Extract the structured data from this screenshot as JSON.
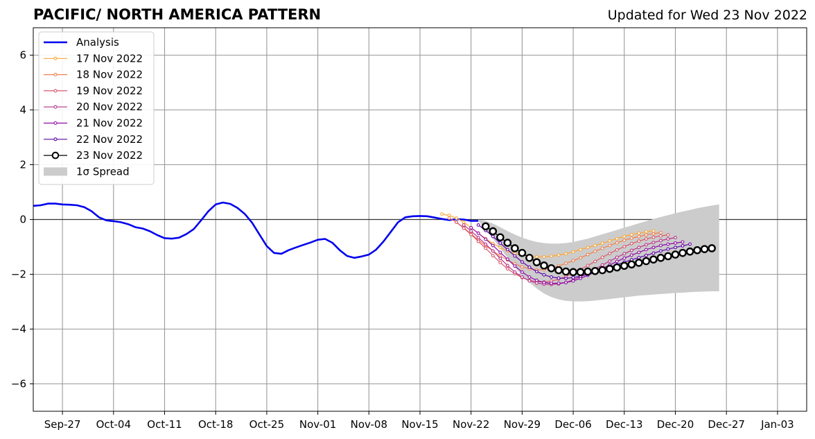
{
  "header": {
    "title": "PACIFIC/ NORTH AMERICA PATTERN",
    "updated": "Updated for Wed 23 Nov 2022"
  },
  "chart_data": {
    "type": "line",
    "title": "PACIFIC/ NORTH AMERICA PATTERN",
    "subtitle": "Updated for Wed 23 Nov 2022",
    "xlabel": "",
    "ylabel": "",
    "x_axis": {
      "start": "2022-09-23",
      "end": "2023-01-07",
      "ticks": [
        {
          "date": "2022-09-27",
          "label": "Sep-27"
        },
        {
          "date": "2022-10-04",
          "label": "Oct-04"
        },
        {
          "date": "2022-10-11",
          "label": "Oct-11"
        },
        {
          "date": "2022-10-18",
          "label": "Oct-18"
        },
        {
          "date": "2022-10-25",
          "label": "Oct-25"
        },
        {
          "date": "2022-11-01",
          "label": "Nov-01"
        },
        {
          "date": "2022-11-08",
          "label": "Nov-08"
        },
        {
          "date": "2022-11-15",
          "label": "Nov-15"
        },
        {
          "date": "2022-11-22",
          "label": "Nov-22"
        },
        {
          "date": "2022-11-29",
          "label": "Nov-29"
        },
        {
          "date": "2022-12-06",
          "label": "Dec-06"
        },
        {
          "date": "2022-12-13",
          "label": "Dec-13"
        },
        {
          "date": "2022-12-20",
          "label": "Dec-20"
        },
        {
          "date": "2022-12-27",
          "label": "Dec-27"
        },
        {
          "date": "2023-01-03",
          "label": "Jan-03"
        }
      ]
    },
    "ylim": [
      -7,
      7
    ],
    "yticks": [
      {
        "value": 6,
        "label": "6"
      },
      {
        "value": 4,
        "label": "4"
      },
      {
        "value": 2,
        "label": "2"
      },
      {
        "value": 0,
        "label": "0"
      },
      {
        "value": -2,
        "label": "−2"
      },
      {
        "value": -4,
        "label": "−4"
      },
      {
        "value": -6,
        "label": "−6"
      }
    ],
    "grid": true,
    "zero_line": true,
    "legend": {
      "placement": "top-left",
      "items": [
        {
          "label": "Analysis",
          "kind": "line",
          "color": "#0000ee"
        },
        {
          "label": "17 Nov 2022",
          "kind": "dotline",
          "color": "#fca636"
        },
        {
          "label": "18 Nov 2022",
          "kind": "dotline",
          "color": "#f07f4f"
        },
        {
          "label": "19 Nov 2022",
          "kind": "dotline",
          "color": "#d8576b"
        },
        {
          "label": "20 Nov 2022",
          "kind": "dotline",
          "color": "#b83289"
        },
        {
          "label": "21 Nov 2022",
          "kind": "dotline",
          "color": "#8b0aa5"
        },
        {
          "label": "22 Nov 2022",
          "kind": "dotline",
          "color": "#5c01a6"
        },
        {
          "label": "23 Nov 2022",
          "kind": "bigdot",
          "color": "#000000"
        },
        {
          "label": "1σ Spread",
          "kind": "patch",
          "color": "#cccccc"
        }
      ]
    },
    "analysis": {
      "name": "Analysis",
      "color": "#0000ee",
      "x": [
        "2022-09-23",
        "2022-09-24",
        "2022-09-25",
        "2022-09-26",
        "2022-09-27",
        "2022-09-28",
        "2022-09-29",
        "2022-09-30",
        "2022-10-01",
        "2022-10-02",
        "2022-10-03",
        "2022-10-04",
        "2022-10-05",
        "2022-10-06",
        "2022-10-07",
        "2022-10-08",
        "2022-10-09",
        "2022-10-10",
        "2022-10-11",
        "2022-10-12",
        "2022-10-13",
        "2022-10-14",
        "2022-10-15",
        "2022-10-16",
        "2022-10-17",
        "2022-10-18",
        "2022-10-19",
        "2022-10-20",
        "2022-10-21",
        "2022-10-22",
        "2022-10-23",
        "2022-10-24",
        "2022-10-25",
        "2022-10-26",
        "2022-10-27",
        "2022-10-28",
        "2022-10-29",
        "2022-10-30",
        "2022-10-31",
        "2022-11-01",
        "2022-11-02",
        "2022-11-03",
        "2022-11-04",
        "2022-11-05",
        "2022-11-06",
        "2022-11-07",
        "2022-11-08",
        "2022-11-09",
        "2022-11-10",
        "2022-11-11",
        "2022-11-12",
        "2022-11-13",
        "2022-11-14",
        "2022-11-15",
        "2022-11-16",
        "2022-11-17",
        "2022-11-18",
        "2022-11-19",
        "2022-11-20",
        "2022-11-21",
        "2022-11-22",
        "2022-11-23"
      ],
      "y": [
        0.5,
        0.52,
        0.58,
        0.58,
        0.55,
        0.54,
        0.52,
        0.45,
        0.3,
        0.08,
        -0.03,
        -0.06,
        -0.1,
        -0.17,
        -0.28,
        -0.33,
        -0.43,
        -0.57,
        -0.68,
        -0.7,
        -0.66,
        -0.53,
        -0.35,
        -0.03,
        0.3,
        0.55,
        0.62,
        0.57,
        0.42,
        0.2,
        -0.12,
        -0.55,
        -0.97,
        -1.22,
        -1.25,
        -1.12,
        -1.02,
        -0.93,
        -0.84,
        -0.74,
        -0.71,
        -0.85,
        -1.12,
        -1.33,
        -1.4,
        -1.35,
        -1.28,
        -1.1,
        -0.8,
        -0.45,
        -0.1,
        0.08,
        0.12,
        0.13,
        0.12,
        0.07,
        0.02,
        -0.02,
        0.01,
        0.0,
        -0.05,
        -0.05
      ]
    },
    "forecasts": [
      {
        "name": "17 Nov 2022",
        "color": "#fca636",
        "start": "2022-11-18",
        "values": [
          0.2,
          0.15,
          0.05,
          -0.1,
          -0.3,
          -0.5,
          -0.7,
          -0.88,
          -1.02,
          -1.15,
          -1.24,
          -1.3,
          -1.34,
          -1.36,
          -1.36,
          -1.34,
          -1.3,
          -1.25,
          -1.18,
          -1.1,
          -1.02,
          -0.95,
          -0.87,
          -0.78,
          -0.7,
          -0.62,
          -0.55,
          -0.5,
          -0.45,
          -0.42
        ]
      },
      {
        "name": "18 Nov 2022",
        "color": "#f07f4f",
        "start": "2022-11-19",
        "values": [
          0.05,
          -0.1,
          -0.3,
          -0.52,
          -0.75,
          -0.95,
          -1.15,
          -1.33,
          -1.48,
          -1.62,
          -1.73,
          -1.8,
          -1.84,
          -1.83,
          -1.78,
          -1.7,
          -1.6,
          -1.5,
          -1.4,
          -1.28,
          -1.16,
          -1.05,
          -0.95,
          -0.85,
          -0.76,
          -0.68,
          -0.62,
          -0.56,
          -0.52,
          -0.48
        ]
      },
      {
        "name": "19 Nov 2022",
        "color": "#d8576b",
        "start": "2022-11-20",
        "values": [
          -0.1,
          -0.32,
          -0.55,
          -0.8,
          -1.05,
          -1.32,
          -1.57,
          -1.8,
          -1.98,
          -2.12,
          -2.22,
          -2.27,
          -2.28,
          -2.25,
          -2.18,
          -2.08,
          -1.95,
          -1.82,
          -1.68,
          -1.53,
          -1.38,
          -1.24,
          -1.11,
          -0.99,
          -0.88,
          -0.79,
          -0.71,
          -0.65,
          -0.6,
          -0.56
        ]
      },
      {
        "name": "20 Nov 2022",
        "color": "#b83289",
        "start": "2022-11-21",
        "values": [
          -0.2,
          -0.42,
          -0.66,
          -0.9,
          -1.15,
          -1.42,
          -1.68,
          -1.92,
          -2.1,
          -2.24,
          -2.32,
          -2.36,
          -2.37,
          -2.35,
          -2.3,
          -2.2,
          -2.08,
          -1.94,
          -1.8,
          -1.66,
          -1.52,
          -1.38,
          -1.25,
          -1.13,
          -1.02,
          -0.92,
          -0.84,
          -0.77,
          -0.71,
          -0.66
        ]
      },
      {
        "name": "21 Nov 2022",
        "color": "#8b0aa5",
        "start": "2022-11-22",
        "values": [
          -0.3,
          -0.5,
          -0.72,
          -0.95,
          -1.2,
          -1.45,
          -1.7,
          -1.92,
          -2.1,
          -2.22,
          -2.3,
          -2.33,
          -2.33,
          -2.3,
          -2.24,
          -2.15,
          -2.04,
          -1.92,
          -1.79,
          -1.66,
          -1.53,
          -1.41,
          -1.3,
          -1.2,
          -1.1,
          -1.02,
          -0.95,
          -0.9,
          -0.86,
          -0.82
        ]
      },
      {
        "name": "22 Nov 2022",
        "color": "#5c01a6",
        "start": "2022-11-23",
        "values": [
          -0.2,
          -0.4,
          -0.62,
          -0.86,
          -1.1,
          -1.33,
          -1.55,
          -1.74,
          -1.9,
          -2.02,
          -2.1,
          -2.14,
          -2.15,
          -2.12,
          -2.07,
          -2.0,
          -1.92,
          -1.83,
          -1.74,
          -1.65,
          -1.56,
          -1.47,
          -1.39,
          -1.31,
          -1.23,
          -1.15,
          -1.08,
          -1.02,
          -0.96,
          -0.9
        ]
      },
      {
        "name": "23 Nov 2022",
        "color": "#000000",
        "start": "2022-11-24",
        "values": [
          -0.25,
          -0.43,
          -0.65,
          -0.85,
          -1.05,
          -1.22,
          -1.4,
          -1.56,
          -1.68,
          -1.78,
          -1.85,
          -1.9,
          -1.92,
          -1.92,
          -1.9,
          -1.88,
          -1.85,
          -1.8,
          -1.75,
          -1.69,
          -1.64,
          -1.58,
          -1.52,
          -1.46,
          -1.4,
          -1.34,
          -1.28,
          -1.22,
          -1.17,
          -1.12,
          -1.08,
          -1.05
        ]
      }
    ],
    "spread": {
      "name": "1σ Spread",
      "color": "#cccccc",
      "start": "2022-11-23",
      "upper": [
        0.0,
        -0.05,
        -0.15,
        -0.28,
        -0.42,
        -0.55,
        -0.66,
        -0.75,
        -0.82,
        -0.86,
        -0.88,
        -0.88,
        -0.86,
        -0.82,
        -0.76,
        -0.7,
        -0.62,
        -0.54,
        -0.46,
        -0.38,
        -0.3,
        -0.22,
        -0.14,
        -0.06,
        0.02,
        0.09,
        0.16,
        0.23,
        0.29,
        0.35,
        0.41,
        0.46,
        0.51,
        0.55
      ],
      "lower": [
        -0.05,
        -0.35,
        -0.7,
        -1.05,
        -1.4,
        -1.75,
        -2.05,
        -2.3,
        -2.52,
        -2.7,
        -2.83,
        -2.92,
        -2.97,
        -2.99,
        -2.99,
        -2.98,
        -2.96,
        -2.93,
        -2.9,
        -2.87,
        -2.84,
        -2.81,
        -2.78,
        -2.76,
        -2.74,
        -2.72,
        -2.7,
        -2.68,
        -2.67,
        -2.65,
        -2.64,
        -2.63,
        -2.62,
        -2.62
      ]
    }
  }
}
